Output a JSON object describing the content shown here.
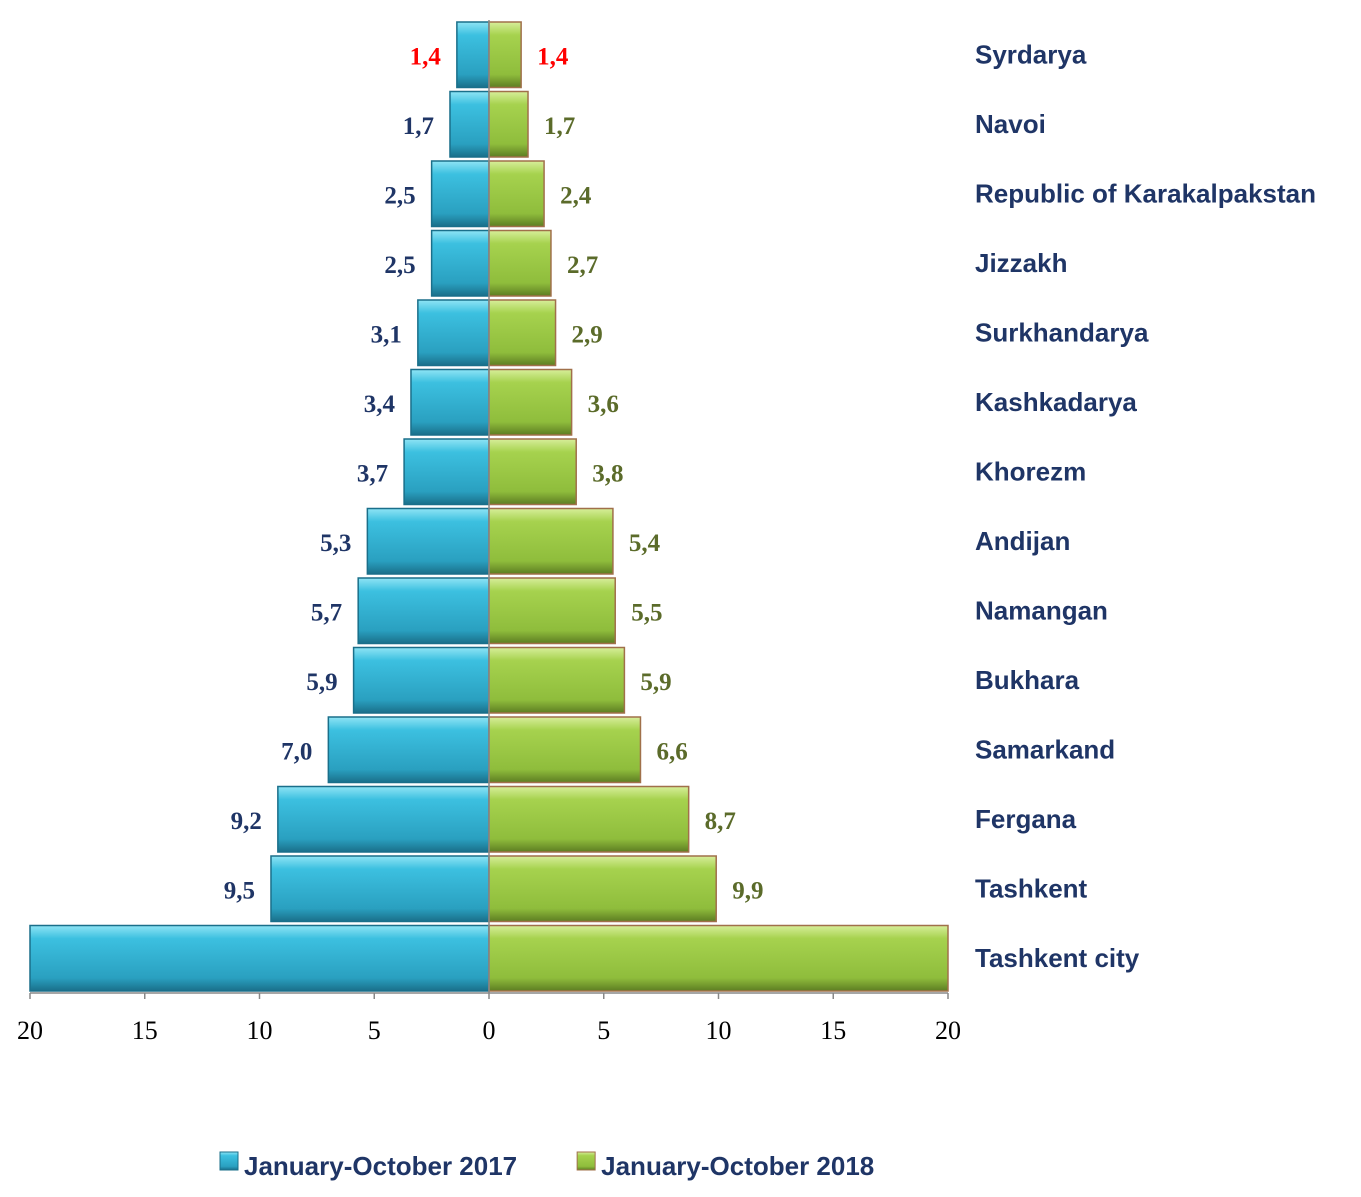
{
  "chart_data": {
    "type": "butterfly",
    "categories": [
      "Syrdarya",
      "Navoi",
      "Republic of Karakalpakstan",
      "Jizzakh",
      "Surkhandarya",
      "Kashkadarya",
      "Khorezm",
      "Andijan",
      "Namangan",
      "Bukhara",
      "Samarkand",
      "Fergana",
      "Tashkent",
      "Tashkent city"
    ],
    "series": [
      {
        "name": "January-October 2017",
        "color": "#2aa6c6",
        "side": "left",
        "values": [
          1.4,
          1.7,
          2.5,
          2.5,
          3.1,
          3.4,
          3.7,
          5.3,
          5.7,
          5.9,
          7.0,
          9.2,
          9.5,
          20
        ],
        "value_labels": [
          "1,4",
          "1,7",
          "2,5",
          "2,5",
          "3,1",
          "3,4",
          "3,7",
          "5,3",
          "5,7",
          "5,9",
          "7,0",
          "9,2",
          "9,5",
          null
        ],
        "label_colors": [
          "#ff0000",
          "#1f3566",
          "#1f3566",
          "#1f3566",
          "#1f3566",
          "#1f3566",
          "#1f3566",
          "#1f3566",
          "#1f3566",
          "#1f3566",
          "#1f3566",
          "#1f3566",
          "#1f3566",
          "#1f3566"
        ]
      },
      {
        "name": "January-October 2018",
        "color": "#8fbd3c",
        "side": "right",
        "values": [
          1.4,
          1.7,
          2.4,
          2.7,
          2.9,
          3.6,
          3.8,
          5.4,
          5.5,
          5.9,
          6.6,
          8.7,
          9.9,
          20
        ],
        "value_labels": [
          "1,4",
          "1,7",
          "2,4",
          "2,7",
          "2,9",
          "3,6",
          "3,8",
          "5,4",
          "5,5",
          "5,9",
          "6,6",
          "8,7",
          "9,9",
          null
        ],
        "label_colors": [
          "#ff0000",
          "#5b6b2a",
          "#5b6b2a",
          "#5b6b2a",
          "#5b6b2a",
          "#5b6b2a",
          "#5b6b2a",
          "#5b6b2a",
          "#5b6b2a",
          "#5b6b2a",
          "#5b6b2a",
          "#5b6b2a",
          "#5b6b2a",
          "#5b6b2a"
        ]
      }
    ],
    "xlim": [
      0,
      20
    ],
    "xticks": [
      0,
      5,
      10,
      15,
      20
    ],
    "legend": "bottom"
  }
}
